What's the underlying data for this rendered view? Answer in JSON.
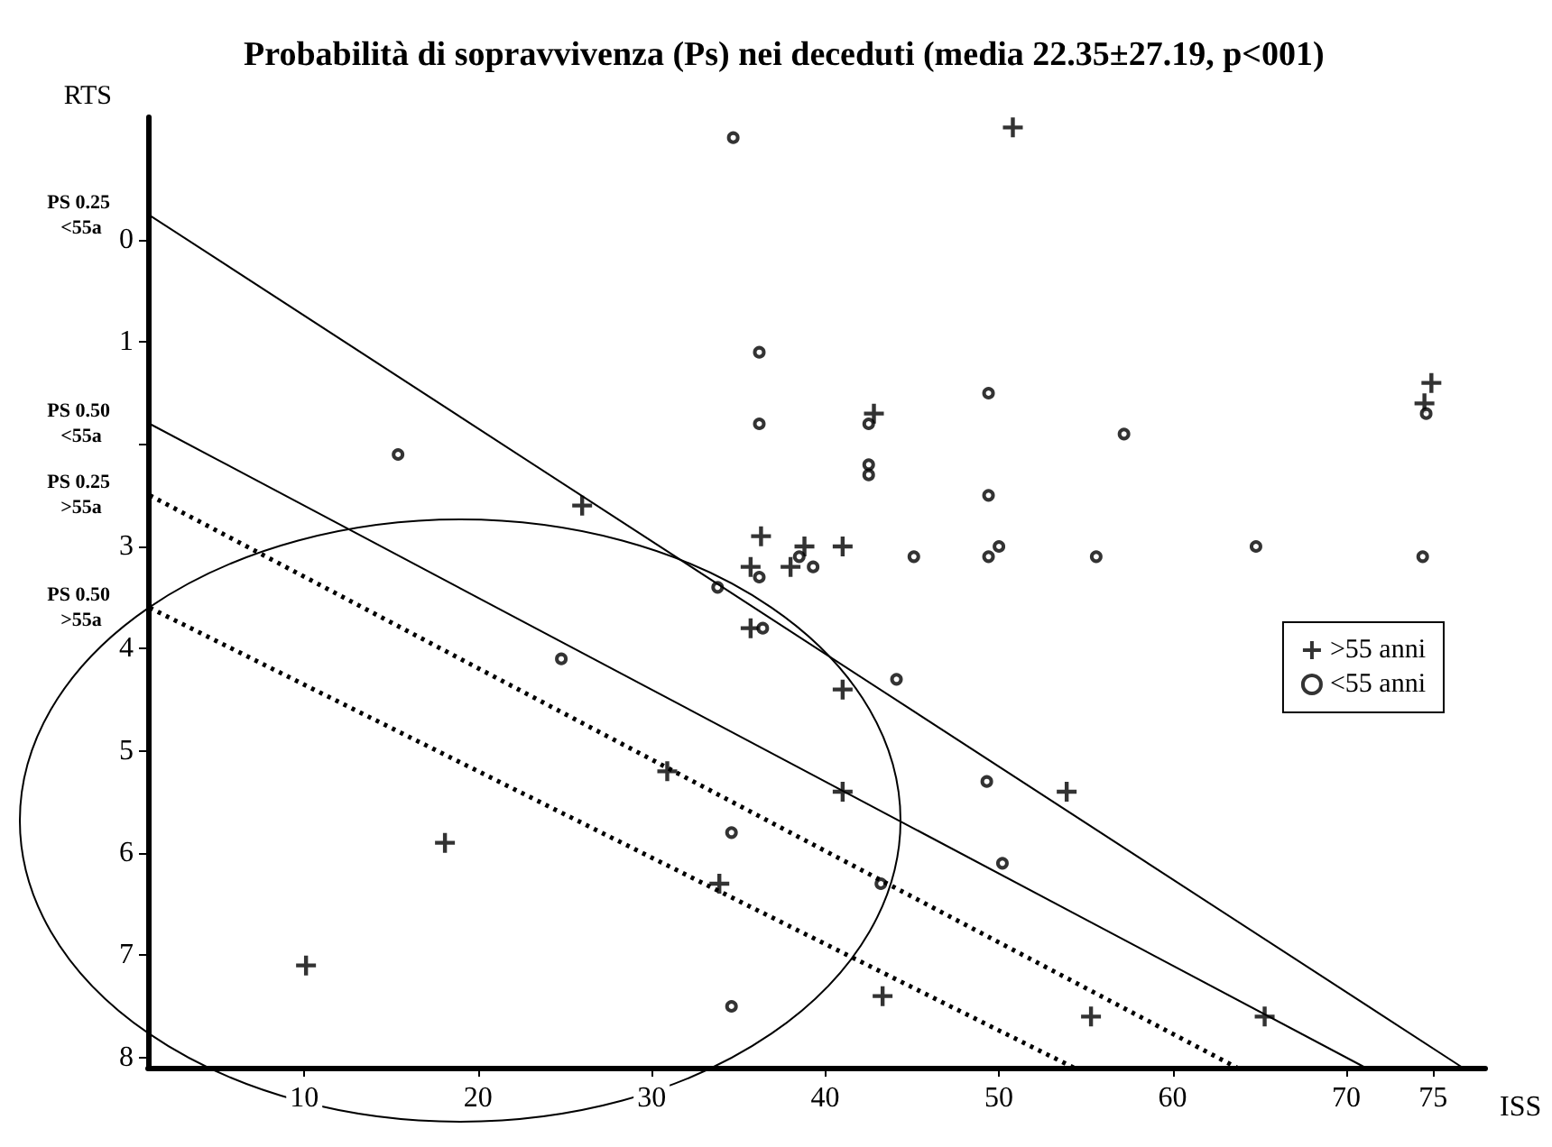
{
  "chart_data": {
    "type": "scatter",
    "title": "Probabilità di sopravvivenza (Ps) nei deceduti (media 22.35±27.19, p<001)",
    "xlabel": "ISS",
    "ylabel": "RTS",
    "xlim": [
      1,
      78
    ],
    "xticks": [
      10,
      20,
      30,
      40,
      50,
      60,
      70,
      75
    ],
    "ylim": [
      8.1,
      -1.2
    ],
    "yticks": [
      0,
      1,
      {
        "value": 2,
        "label": null
      },
      3,
      4,
      5,
      6,
      7,
      8
    ],
    "grid": false,
    "legend": "right",
    "series": [
      {
        "name": ">55 anni",
        "marker": "cross",
        "color": "#000000",
        "x": [
          50.8,
          42.8,
          26.0,
          36.3,
          38.8,
          41.0,
          35.7,
          38.0,
          35.7,
          74.9,
          74.5,
          41.0,
          30.9,
          41.0,
          18.1,
          33.9,
          10.1,
          43.3,
          53.9,
          55.3,
          65.3
        ],
        "values": [
          -1.1,
          1.7,
          2.6,
          2.9,
          3.0,
          3.0,
          3.2,
          3.2,
          3.8,
          1.4,
          1.6,
          4.4,
          5.2,
          5.4,
          5.9,
          6.3,
          7.1,
          7.4,
          5.4,
          7.6,
          7.6
        ]
      },
      {
        "name": "<55 anni",
        "marker": "circle",
        "color": "#000000",
        "x": [
          34.7,
          36.2,
          36.2,
          15.4,
          42.5,
          42.5,
          42.5,
          38.5,
          39.3,
          36.2,
          33.8,
          36.4,
          24.8,
          49.4,
          57.2,
          49.4,
          45.1,
          49.4,
          50.0,
          55.6,
          64.8,
          74.6,
          74.4,
          44.1,
          34.6,
          43.2,
          34.6,
          49.3,
          50.2
        ],
        "values": [
          -1.0,
          1.1,
          1.8,
          2.1,
          1.8,
          2.2,
          2.3,
          3.1,
          3.2,
          3.3,
          3.4,
          3.8,
          4.1,
          1.5,
          1.9,
          2.5,
          3.1,
          3.1,
          3.0,
          3.1,
          3.0,
          1.7,
          3.1,
          4.3,
          5.8,
          6.3,
          7.5,
          5.3,
          6.1
        ]
      },
      {
        "name": "PS 0.25 <55a",
        "type": "line",
        "marker": "none",
        "line_style": "solid",
        "color": "#000000",
        "x": [
          1.1,
          76.7
        ],
        "values": [
          -0.24,
          8.1
        ]
      },
      {
        "name": "PS 0.50 <55a",
        "type": "line",
        "marker": "none",
        "line_style": "solid",
        "color": "#000000",
        "x": [
          1.1,
          71.1
        ],
        "values": [
          1.8,
          8.1
        ]
      },
      {
        "name": "PS 0.25 >55a",
        "type": "line",
        "marker": "none",
        "line_style": "dotted",
        "color": "#000000",
        "x": [
          1.1,
          63.7
        ],
        "values": [
          2.5,
          8.1
        ]
      },
      {
        "name": "PS 0.50 >55a",
        "type": "line",
        "marker": "none",
        "line_style": "dotted",
        "color": "#000000",
        "x": [
          1.1,
          54.3
        ],
        "values": [
          3.6,
          8.1
        ]
      }
    ]
  }
}
